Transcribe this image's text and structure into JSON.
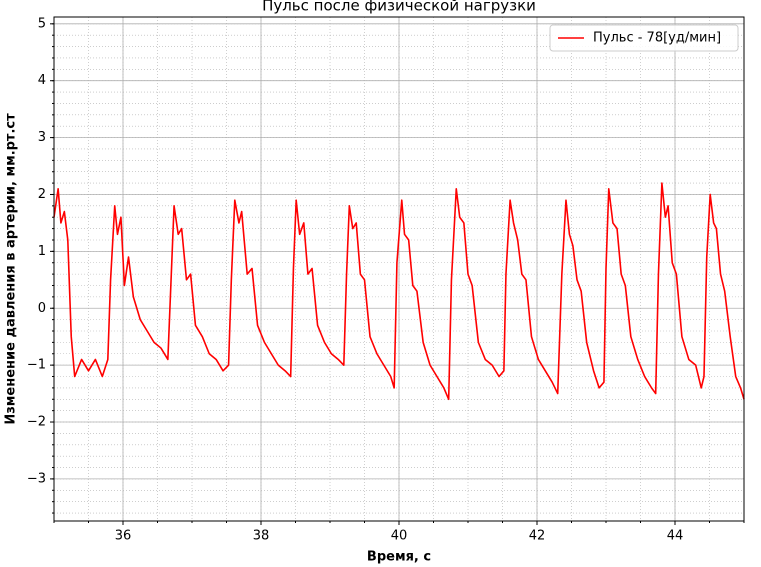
{
  "chart_data": {
    "type": "line",
    "title": "Пульс после физической нагрузки",
    "xlabel": "Время, с",
    "ylabel": "Изменение давления в артерии, мм.рт.ст",
    "xlim": [
      35,
      45
    ],
    "ylim": [
      -3.74,
      5.12
    ],
    "xticks": [
      36,
      38,
      40,
      42,
      44
    ],
    "yticks": [
      {
        "value": -3,
        "label": "−3"
      },
      {
        "value": -2,
        "label": "−2"
      },
      {
        "value": -1,
        "label": "−1"
      },
      0,
      1,
      2,
      3,
      4,
      5
    ],
    "grid": true,
    "legend": "upper right",
    "x": [
      35.0,
      35.06,
      35.1,
      35.15,
      35.2,
      35.25,
      35.3,
      35.4,
      35.5,
      35.6,
      35.7,
      35.78,
      35.82,
      35.88,
      35.92,
      35.97,
      36.02,
      36.08,
      36.15,
      36.25,
      36.35,
      36.45,
      36.55,
      36.65,
      36.7,
      36.74,
      36.8,
      36.85,
      36.92,
      36.98,
      37.05,
      37.15,
      37.25,
      37.35,
      37.45,
      37.53,
      37.57,
      37.62,
      37.68,
      37.72,
      37.8,
      37.87,
      37.95,
      38.05,
      38.15,
      38.25,
      38.35,
      38.43,
      38.47,
      38.51,
      38.56,
      38.62,
      38.68,
      38.74,
      38.82,
      38.92,
      39.02,
      39.12,
      39.2,
      39.24,
      39.28,
      39.33,
      39.38,
      39.44,
      39.5,
      39.58,
      39.68,
      39.78,
      39.88,
      39.93,
      39.97,
      40.04,
      40.08,
      40.14,
      40.2,
      40.26,
      40.35,
      40.45,
      40.55,
      40.65,
      40.72,
      40.76,
      40.83,
      40.88,
      40.94,
      41.0,
      41.06,
      41.15,
      41.25,
      41.35,
      41.45,
      41.52,
      41.55,
      41.61,
      41.66,
      41.72,
      41.78,
      41.84,
      41.92,
      42.02,
      42.12,
      42.22,
      42.3,
      42.36,
      42.42,
      42.47,
      42.52,
      42.58,
      42.64,
      42.72,
      42.82,
      42.9,
      42.97,
      43.0,
      43.04,
      43.1,
      43.16,
      43.22,
      43.28,
      43.36,
      43.46,
      43.56,
      43.66,
      43.72,
      43.76,
      43.81,
      43.86,
      43.9,
      43.96,
      44.02,
      44.1,
      44.2,
      44.3,
      44.38,
      44.42,
      44.46,
      44.51,
      44.56,
      44.6,
      44.66,
      44.72,
      44.8,
      44.88,
      44.95,
      45.0
    ],
    "series": [
      {
        "name": "Пульс - 78[уд/мин]",
        "color": "#ff0000",
        "values": [
          1.6,
          2.1,
          1.5,
          1.7,
          1.2,
          -0.5,
          -1.2,
          -0.9,
          -1.1,
          -0.9,
          -1.2,
          -0.9,
          0.5,
          1.8,
          1.3,
          1.6,
          0.4,
          0.9,
          0.2,
          -0.2,
          -0.4,
          -0.6,
          -0.7,
          -0.9,
          0.6,
          1.8,
          1.3,
          1.4,
          0.5,
          0.6,
          -0.3,
          -0.5,
          -0.8,
          -0.9,
          -1.1,
          -1.0,
          0.5,
          1.9,
          1.5,
          1.7,
          0.6,
          0.7,
          -0.3,
          -0.6,
          -0.8,
          -1.0,
          -1.1,
          -1.2,
          0.7,
          1.9,
          1.3,
          1.5,
          0.6,
          0.7,
          -0.3,
          -0.6,
          -0.8,
          -0.9,
          -1.0,
          0.6,
          1.8,
          1.4,
          1.5,
          0.6,
          0.5,
          -0.5,
          -0.8,
          -1.0,
          -1.2,
          -1.4,
          0.8,
          1.9,
          1.3,
          1.2,
          0.4,
          0.3,
          -0.6,
          -1.0,
          -1.2,
          -1.4,
          -1.6,
          0.5,
          2.1,
          1.6,
          1.5,
          0.6,
          0.4,
          -0.6,
          -0.9,
          -1.0,
          -1.2,
          -1.1,
          0.6,
          1.9,
          1.5,
          1.2,
          0.6,
          0.5,
          -0.5,
          -0.9,
          -1.1,
          -1.3,
          -1.5,
          0.6,
          1.9,
          1.3,
          1.1,
          0.5,
          0.3,
          -0.6,
          -1.1,
          -1.4,
          -1.3,
          0.7,
          2.1,
          1.5,
          1.4,
          0.6,
          0.4,
          -0.5,
          -0.9,
          -1.2,
          -1.4,
          -1.5,
          0.6,
          2.2,
          1.6,
          1.8,
          0.8,
          0.6,
          -0.5,
          -0.9,
          -1.0,
          -1.4,
          -1.2,
          0.9,
          2.0,
          1.5,
          1.4,
          0.6,
          0.3,
          -0.5,
          -1.2,
          -1.4,
          -1.6
        ]
      }
    ]
  }
}
